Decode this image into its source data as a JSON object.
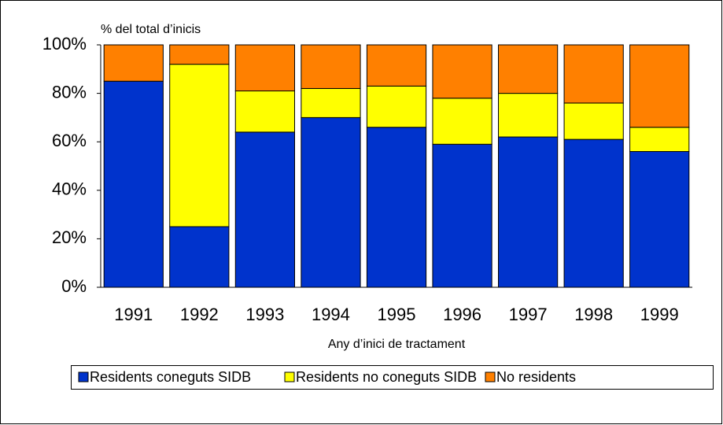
{
  "chart_data": {
    "type": "stacked-bar",
    "y_axis_label": "% del total d’inicis",
    "x_axis_label": "Any d’inici de tractament",
    "categories": [
      "1991",
      "1992",
      "1993",
      "1994",
      "1995",
      "1996",
      "1997",
      "1998",
      "1999"
    ],
    "series": [
      {
        "name": "Residents coneguts SIDB",
        "color": "#0033cc",
        "values": [
          85,
          25,
          64,
          70,
          66,
          59,
          62,
          61,
          56
        ]
      },
      {
        "name": "Residents no coneguts SIDB",
        "color": "#ffff00",
        "values": [
          0,
          67,
          17,
          12,
          17,
          19,
          18,
          15,
          10
        ]
      },
      {
        "name": "No residents",
        "color": "#ff8000",
        "values": [
          15,
          8,
          19,
          18,
          17,
          22,
          20,
          24,
          34
        ]
      }
    ],
    "ylim": [
      0,
      100
    ],
    "yticks": [
      {
        "value": 0,
        "label": "0%"
      },
      {
        "value": 20,
        "label": "20%"
      },
      {
        "value": 40,
        "label": "40%"
      },
      {
        "value": 60,
        "label": "60%"
      },
      {
        "value": 80,
        "label": "80%"
      },
      {
        "value": 100,
        "label": "100%"
      }
    ],
    "legend": "bottom"
  }
}
